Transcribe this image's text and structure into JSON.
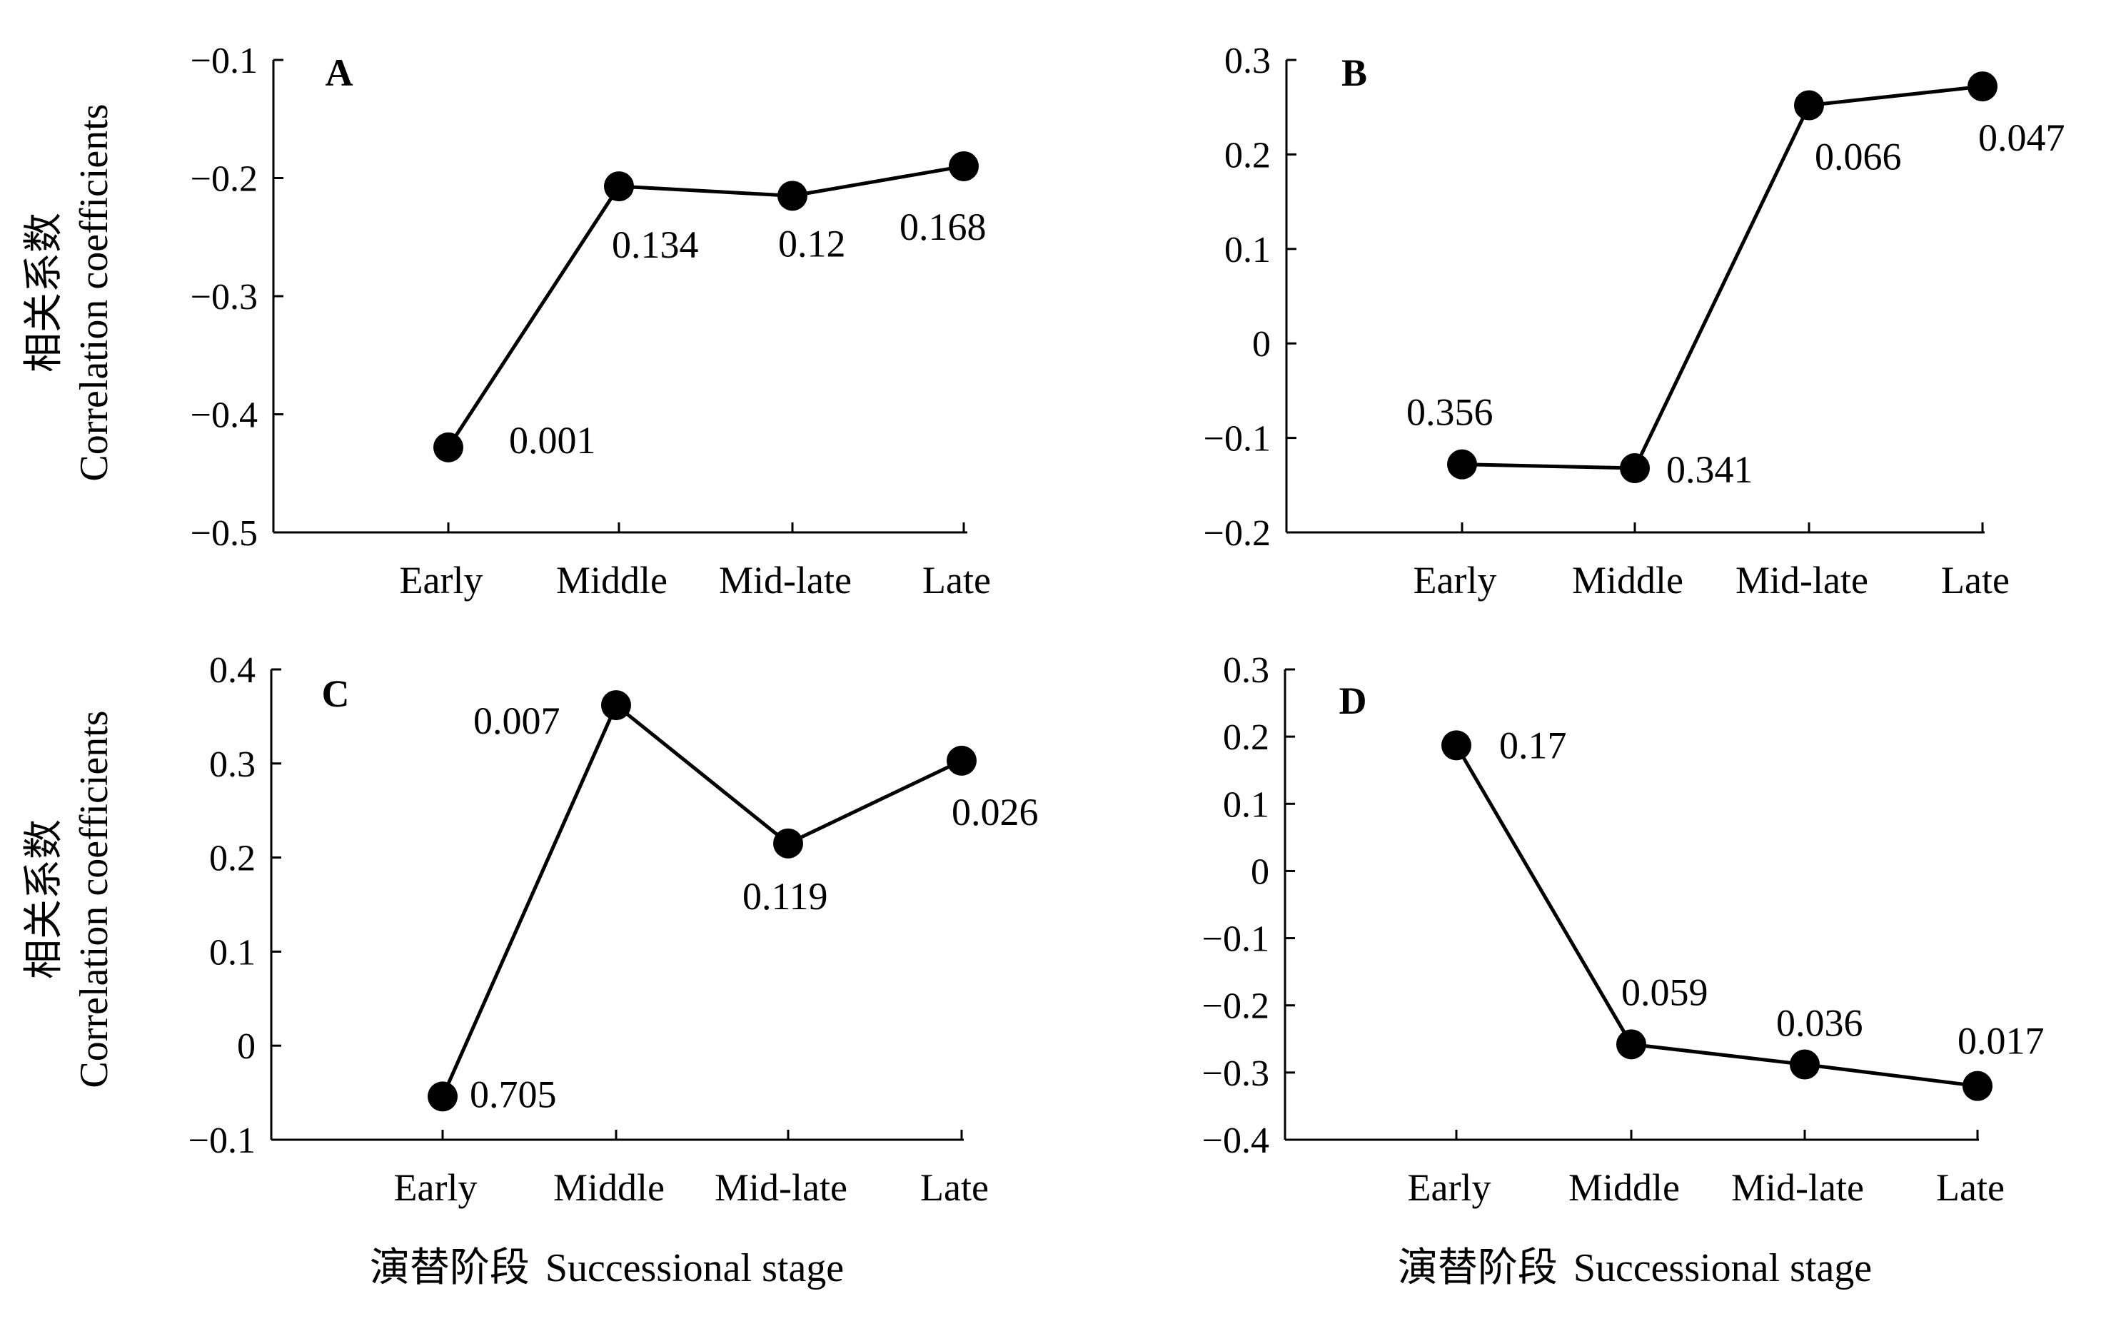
{
  "figure": {
    "ylabel_cn": "相关系数",
    "ylabel_en": "Correlation coefficients",
    "xlabel_cn": "演替阶段",
    "xlabel_en": "Successional stage"
  },
  "chart_data": [
    {
      "type": "line",
      "panel": "A",
      "categories": [
        "Early",
        "Middle",
        "Mid-late",
        "Late"
      ],
      "values": [
        -0.428,
        -0.207,
        -0.215,
        -0.19
      ],
      "point_labels": [
        "0.001",
        "0.134",
        "0.12",
        "0.168"
      ],
      "ylim": [
        -0.5,
        -0.1
      ],
      "yticks": [
        "−0.5",
        "−0.4",
        "−0.3",
        "−0.2",
        "−0.1"
      ],
      "ylabel_cn": "相关系数",
      "ylabel": "Correlation coefficients",
      "xlabel": "",
      "grid": false
    },
    {
      "type": "line",
      "panel": "B",
      "categories": [
        "Early",
        "Middle",
        "Mid-late",
        "Late"
      ],
      "values": [
        -0.128,
        -0.132,
        0.252,
        0.272
      ],
      "point_labels": [
        "0.356",
        "0.341",
        "0.066",
        "0.047"
      ],
      "ylim": [
        -0.2,
        0.3
      ],
      "yticks": [
        "−0.2",
        "−0.1",
        "0",
        "0.1",
        "0.2",
        "0.3"
      ],
      "ylabel": "",
      "xlabel": "",
      "grid": false
    },
    {
      "type": "line",
      "panel": "C",
      "categories": [
        "Early",
        "Middle",
        "Mid-late",
        "Late"
      ],
      "values": [
        -0.054,
        0.362,
        0.215,
        0.303
      ],
      "point_labels": [
        "0.705",
        "0.007",
        "0.119",
        "0.026"
      ],
      "ylim": [
        -0.1,
        0.4
      ],
      "yticks": [
        "−0.1",
        "0",
        "0.1",
        "0.2",
        "0.3",
        "0.4"
      ],
      "ylabel_cn": "相关系数",
      "ylabel": "Correlation coefficients",
      "xlabel_cn": "演替阶段",
      "xlabel": "Successional stage",
      "grid": false
    },
    {
      "type": "line",
      "panel": "D",
      "categories": [
        "Early",
        "Middle",
        "Mid-late",
        "Late"
      ],
      "values": [
        0.187,
        -0.258,
        -0.288,
        -0.32
      ],
      "point_labels": [
        "0.17",
        "0.059",
        "0.036",
        "0.017"
      ],
      "ylim": [
        -0.4,
        0.3
      ],
      "yticks": [
        "−0.4",
        "−0.3",
        "−0.2",
        "−0.1",
        "0",
        "0.1",
        "0.2",
        "0.3"
      ],
      "ylabel": "",
      "xlabel_cn": "演替阶段",
      "xlabel": "Successional stage",
      "grid": false
    }
  ]
}
